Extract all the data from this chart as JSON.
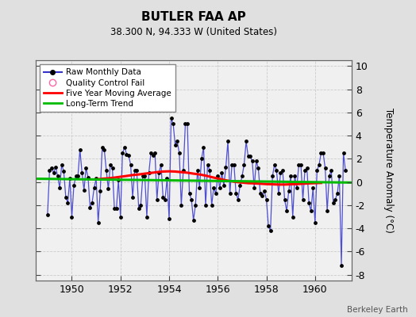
{
  "title": "BUTLER FAA AP",
  "subtitle": "38.300 N, 94.333 W (United States)",
  "ylabel": "Temperature Anomaly (°C)",
  "attribution": "Berkeley Earth",
  "xlim": [
    1948.5,
    1961.5
  ],
  "ylim": [
    -8.5,
    10.5
  ],
  "yticks": [
    -8,
    -6,
    -4,
    -2,
    0,
    2,
    4,
    6,
    8,
    10
  ],
  "xticks": [
    1950,
    1952,
    1954,
    1956,
    1958,
    1960
  ],
  "fig_bg_color": "#e0e0e0",
  "plot_bg_color": "#f0f0f0",
  "raw_color": "#3333cc",
  "raw_marker_color": "#000000",
  "ma_color": "#ff0000",
  "trend_color": "#00bb00",
  "qc_color": "#ff66aa",
  "grid_color": "#cccccc",
  "raw_data_x": [
    1949.0,
    1949.083,
    1949.167,
    1949.25,
    1949.333,
    1949.417,
    1949.5,
    1949.583,
    1949.667,
    1949.75,
    1949.833,
    1949.917,
    1950.0,
    1950.083,
    1950.167,
    1950.25,
    1950.333,
    1950.417,
    1950.5,
    1950.583,
    1950.667,
    1950.75,
    1950.833,
    1950.917,
    1951.0,
    1951.083,
    1951.167,
    1951.25,
    1951.333,
    1951.417,
    1951.5,
    1951.583,
    1951.667,
    1951.75,
    1951.833,
    1951.917,
    1952.0,
    1952.083,
    1952.167,
    1952.25,
    1952.333,
    1952.417,
    1952.5,
    1952.583,
    1952.667,
    1952.75,
    1952.833,
    1952.917,
    1953.0,
    1953.083,
    1953.167,
    1953.25,
    1953.333,
    1953.417,
    1953.5,
    1953.583,
    1953.667,
    1953.75,
    1953.833,
    1953.917,
    1954.0,
    1954.083,
    1954.167,
    1954.25,
    1954.333,
    1954.417,
    1954.5,
    1954.583,
    1954.667,
    1954.75,
    1954.833,
    1954.917,
    1955.0,
    1955.083,
    1955.167,
    1955.25,
    1955.333,
    1955.417,
    1955.5,
    1955.583,
    1955.667,
    1955.75,
    1955.833,
    1955.917,
    1956.0,
    1956.083,
    1956.167,
    1956.25,
    1956.333,
    1956.417,
    1956.5,
    1956.583,
    1956.667,
    1956.75,
    1956.833,
    1956.917,
    1957.0,
    1957.083,
    1957.167,
    1957.25,
    1957.333,
    1957.417,
    1957.5,
    1957.583,
    1957.667,
    1957.75,
    1957.833,
    1957.917,
    1958.0,
    1958.083,
    1958.167,
    1958.25,
    1958.333,
    1958.417,
    1958.5,
    1958.583,
    1958.667,
    1958.75,
    1958.833,
    1958.917,
    1959.0,
    1959.083,
    1959.167,
    1959.25,
    1959.333,
    1959.417,
    1959.5,
    1959.583,
    1959.667,
    1959.75,
    1959.833,
    1959.917,
    1960.0,
    1960.083,
    1960.167,
    1960.25,
    1960.333,
    1960.417,
    1960.5,
    1960.583,
    1960.667,
    1960.75,
    1960.833,
    1960.917,
    1961.0,
    1961.083,
    1961.167,
    1961.25
  ],
  "raw_data_y": [
    -2.8,
    1.0,
    1.2,
    0.8,
    1.3,
    0.5,
    -0.5,
    1.5,
    0.9,
    -1.3,
    -1.8,
    0.3,
    -3.0,
    -0.3,
    0.5,
    0.5,
    2.8,
    0.8,
    -0.7,
    1.2,
    0.4,
    -2.2,
    -1.8,
    -0.5,
    0.3,
    -3.5,
    -0.8,
    3.0,
    2.8,
    1.0,
    -0.6,
    1.5,
    1.2,
    -2.3,
    -2.3,
    0.2,
    -3.0,
    2.5,
    3.0,
    2.4,
    2.3,
    1.5,
    -1.3,
    1.0,
    1.0,
    -2.3,
    -2.0,
    0.5,
    0.5,
    -3.0,
    0.8,
    2.5,
    2.3,
    2.5,
    -1.5,
    0.8,
    1.5,
    -1.3,
    -1.5,
    0.3,
    -3.2,
    5.5,
    5.0,
    3.2,
    3.5,
    2.5,
    -2.0,
    1.0,
    5.0,
    5.0,
    -1.0,
    -1.5,
    -3.3,
    -2.0,
    1.0,
    -0.5,
    2.0,
    3.0,
    -2.0,
    1.5,
    1.0,
    -2.0,
    -0.5,
    -1.0,
    0.5,
    -0.5,
    0.8,
    -0.3,
    1.3,
    3.5,
    -1.0,
    1.5,
    1.5,
    -1.0,
    -1.5,
    -0.3,
    0.5,
    1.5,
    3.5,
    2.2,
    2.2,
    1.8,
    -0.5,
    1.8,
    1.2,
    -1.0,
    -1.2,
    -0.8,
    -1.5,
    -3.8,
    -4.2,
    0.5,
    1.5,
    1.0,
    -1.0,
    0.8,
    1.0,
    -1.5,
    -2.5,
    -0.8,
    0.5,
    -3.0,
    0.5,
    -0.5,
    1.5,
    1.5,
    -1.5,
    1.0,
    1.2,
    -1.8,
    -2.5,
    -0.5,
    -3.5,
    1.0,
    1.5,
    2.5,
    2.5,
    1.2,
    -2.5,
    0.5,
    1.0,
    -1.8,
    -1.5,
    -1.0,
    0.5,
    -7.2,
    2.5,
    1.0
  ],
  "ma_x": [
    1951.0,
    1951.25,
    1951.5,
    1951.75,
    1952.0,
    1952.25,
    1952.5,
    1952.75,
    1953.0,
    1953.25,
    1953.5,
    1953.75,
    1954.0,
    1954.25,
    1954.5,
    1954.75,
    1955.0,
    1955.25,
    1955.5,
    1955.75,
    1956.0,
    1956.25,
    1956.5,
    1956.75,
    1957.0,
    1957.25,
    1957.5,
    1957.75,
    1958.0,
    1958.25,
    1958.5,
    1958.75,
    1959.0,
    1959.25,
    1959.5,
    1959.75,
    1960.0,
    1960.25
  ],
  "ma_y": [
    0.22,
    0.28,
    0.32,
    0.38,
    0.45,
    0.52,
    0.6,
    0.65,
    0.72,
    0.78,
    0.85,
    0.9,
    0.92,
    0.9,
    0.85,
    0.8,
    0.72,
    0.65,
    0.55,
    0.42,
    0.3,
    0.18,
    0.08,
    0.0,
    -0.05,
    -0.1,
    -0.12,
    -0.15,
    -0.18,
    -0.2,
    -0.22,
    -0.22,
    -0.2,
    -0.18,
    -0.15,
    -0.12,
    -0.1,
    -0.08
  ],
  "trend_x": [
    1948.5,
    1961.5
  ],
  "trend_y": [
    0.28,
    -0.05
  ]
}
